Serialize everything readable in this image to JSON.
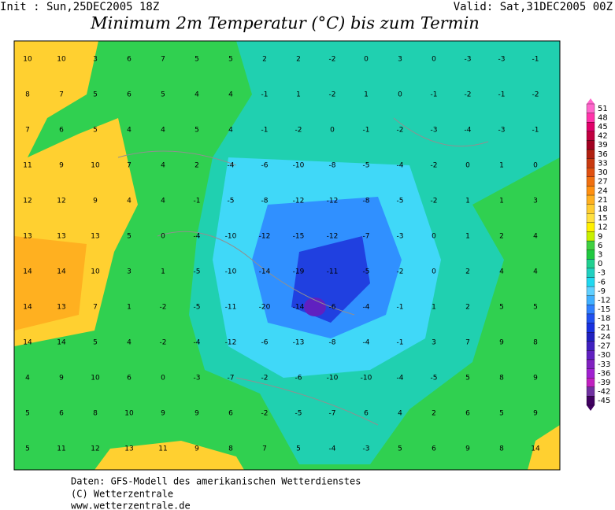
{
  "header": {
    "init": "Init : Sun,25DEC2005 18Z",
    "valid": "Valid: Sat,31DEC2005 00Z",
    "title": "Minimum 2m Temperatur (°C) bis zum Termin"
  },
  "map": {
    "values": [
      [
        10,
        10,
        3,
        6,
        7,
        5,
        5,
        2,
        2,
        -2,
        0,
        3,
        0,
        -3,
        -3,
        -1
      ],
      [
        8,
        7,
        5,
        6,
        5,
        4,
        4,
        -1,
        1,
        -2,
        1,
        0,
        -1,
        -2,
        -1,
        -2
      ],
      [
        7,
        6,
        5,
        4,
        4,
        5,
        4,
        -1,
        -2,
        0,
        -1,
        -2,
        -3,
        -4,
        -3,
        -1
      ],
      [
        11,
        9,
        10,
        7,
        4,
        2,
        -4,
        -6,
        -10,
        -8,
        -5,
        -4,
        -2,
        0,
        1,
        0
      ],
      [
        12,
        12,
        9,
        4,
        4,
        -1,
        -5,
        -8,
        -12,
        -12,
        -8,
        -5,
        -2,
        1,
        1,
        3
      ],
      [
        13,
        13,
        13,
        5,
        0,
        -4,
        -10,
        -12,
        -15,
        -12,
        -7,
        -3,
        0,
        1,
        2,
        4
      ],
      [
        14,
        14,
        10,
        3,
        1,
        -5,
        -10,
        -14,
        -19,
        -11,
        -5,
        -2,
        0,
        2,
        4,
        4
      ],
      [
        14,
        13,
        7,
        1,
        -2,
        -5,
        -11,
        -20,
        -14,
        -6,
        -4,
        -1,
        1,
        2,
        5,
        5
      ],
      [
        14,
        14,
        5,
        4,
        -2,
        -4,
        -12,
        -6,
        -13,
        -8,
        -4,
        -1,
        3,
        7,
        9,
        8
      ],
      [
        4,
        9,
        10,
        6,
        0,
        -3,
        -7,
        -2,
        -6,
        -10,
        -10,
        -4,
        -5,
        5,
        8,
        9
      ],
      [
        5,
        6,
        8,
        10,
        9,
        9,
        6,
        -2,
        -5,
        -7,
        6,
        4,
        2,
        6,
        5,
        9
      ],
      [
        5,
        11,
        12,
        13,
        11,
        9,
        8,
        7,
        5,
        -4,
        -3,
        5,
        6,
        9,
        8,
        14
      ]
    ]
  },
  "legend": {
    "levels": [
      51,
      48,
      45,
      42,
      39,
      36,
      33,
      30,
      27,
      24,
      21,
      18,
      15,
      12,
      9,
      6,
      3,
      0,
      -3,
      -6,
      -9,
      -12,
      -15,
      -18,
      -21,
      -24,
      -27,
      -30,
      -33,
      -36,
      -39,
      -42,
      -45
    ],
    "colors": [
      "#ff66cc",
      "#ff33aa",
      "#e0006a",
      "#c00040",
      "#a00020",
      "#b02010",
      "#c83a10",
      "#e05010",
      "#f07010",
      "#ff9010",
      "#ffb020",
      "#ffcc30",
      "#ffe040",
      "#fff000",
      "#c8f000",
      "#40d040",
      "#20c840",
      "#20d090",
      "#20d0c0",
      "#20d8f0",
      "#60d0ff",
      "#40b0ff",
      "#3080ff",
      "#2050f0",
      "#1830e0",
      "#2020c0",
      "#4020c0",
      "#6020c0",
      "#8020c0",
      "#a020d0",
      "#c020c0",
      "#7030a0",
      "#400060"
    ]
  },
  "footer": {
    "lines": [
      "Daten: GFS-Modell des amerikanischen Wetterdienstes",
      "(C) Wetterzentrale",
      "www.wetterzentrale.de"
    ]
  }
}
